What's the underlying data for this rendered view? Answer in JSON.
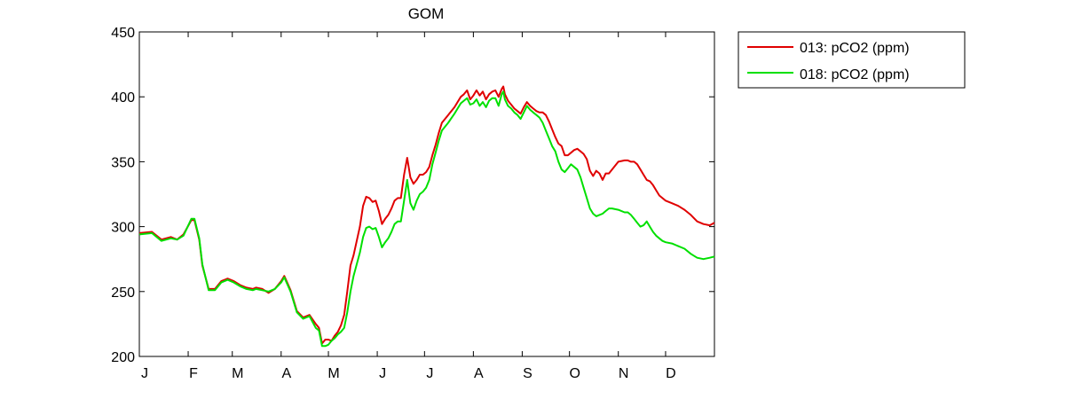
{
  "chart_data": {
    "type": "line",
    "title": "GOM",
    "xlabel": "",
    "ylabel": "",
    "xlim": [
      0,
      365
    ],
    "ylim": [
      200,
      450
    ],
    "yticks": [
      200,
      250,
      300,
      350,
      400,
      450
    ],
    "xticks": [
      {
        "label": "J",
        "day": 0
      },
      {
        "label": "F",
        "day": 31
      },
      {
        "label": "M",
        "day": 59
      },
      {
        "label": "A",
        "day": 90
      },
      {
        "label": "M",
        "day": 120
      },
      {
        "label": "J",
        "day": 151
      },
      {
        "label": "J",
        "day": 181
      },
      {
        "label": "A",
        "day": 212
      },
      {
        "label": "S",
        "day": 243
      },
      {
        "label": "O",
        "day": 273
      },
      {
        "label": "N",
        "day": 304
      },
      {
        "label": "D",
        "day": 334
      }
    ],
    "grid": false,
    "legend_position": "outside-top-right",
    "series": [
      {
        "name": "013: pCO2 (ppm)",
        "color": "#e00000",
        "x": [
          0,
          8,
          14,
          20,
          24,
          28,
          33,
          35,
          38,
          40,
          44,
          48,
          52,
          56,
          60,
          64,
          68,
          72,
          74,
          78,
          82,
          86,
          90,
          92,
          96,
          100,
          104,
          108,
          112,
          114,
          116,
          118,
          120,
          122,
          124,
          126,
          128,
          130,
          132,
          134,
          136,
          140,
          142,
          144,
          146,
          148,
          150,
          152,
          154,
          156,
          158,
          160,
          162,
          164,
          166,
          168,
          170,
          172,
          174,
          176,
          178,
          180,
          182,
          184,
          186,
          188,
          190,
          192,
          196,
          200,
          204,
          206,
          208,
          210,
          212,
          214,
          216,
          218,
          220,
          222,
          224,
          226,
          228,
          230,
          231,
          232,
          234,
          236,
          238,
          240,
          242,
          244,
          246,
          248,
          250,
          252,
          254,
          256,
          258,
          260,
          262,
          264,
          266,
          268,
          270,
          272,
          274,
          276,
          278,
          280,
          282,
          284,
          286,
          288,
          290,
          292,
          294,
          296,
          298,
          300,
          304,
          308,
          310,
          312,
          314,
          316,
          318,
          320,
          322,
          324,
          326,
          328,
          330,
          332,
          334,
          338,
          342,
          346,
          350,
          354,
          358,
          362,
          365
        ],
        "y": [
          295,
          296,
          290,
          292,
          290,
          294,
          305,
          305,
          290,
          270,
          252,
          252,
          258,
          260,
          258,
          255,
          253,
          252,
          253,
          252,
          249,
          252,
          258,
          262,
          251,
          235,
          230,
          232,
          225,
          222,
          210,
          213,
          213,
          212,
          216,
          219,
          224,
          232,
          250,
          270,
          278,
          300,
          316,
          323,
          322,
          319,
          320,
          312,
          302,
          306,
          309,
          314,
          320,
          322,
          322,
          340,
          353,
          338,
          333,
          336,
          340,
          340,
          342,
          346,
          355,
          363,
          372,
          380,
          386,
          392,
          400,
          402,
          405,
          398,
          401,
          405,
          401,
          404,
          398,
          402,
          404,
          405,
          400,
          406,
          408,
          402,
          397,
          394,
          391,
          389,
          387,
          392,
          396,
          393,
          391,
          389,
          388,
          388,
          386,
          381,
          375,
          369,
          364,
          362,
          355,
          355,
          357,
          359,
          360,
          358,
          356,
          352,
          343,
          339,
          343,
          341,
          336,
          341,
          341,
          344,
          350,
          351,
          351,
          350,
          350,
          348,
          344,
          340,
          336,
          335,
          332,
          328,
          324,
          322,
          320,
          318,
          316,
          313,
          309,
          304,
          302,
          301,
          303
        ]
      },
      {
        "name": "018: pCO2 (ppm)",
        "color": "#00e000",
        "x": [
          0,
          8,
          14,
          20,
          24,
          28,
          33,
          35,
          38,
          40,
          44,
          48,
          52,
          56,
          60,
          64,
          68,
          72,
          74,
          78,
          82,
          86,
          90,
          92,
          96,
          100,
          104,
          108,
          112,
          114,
          116,
          118,
          120,
          122,
          124,
          126,
          128,
          130,
          132,
          134,
          136,
          140,
          142,
          144,
          146,
          148,
          150,
          152,
          154,
          156,
          158,
          160,
          162,
          164,
          166,
          168,
          170,
          172,
          174,
          176,
          178,
          180,
          182,
          184,
          186,
          188,
          190,
          192,
          196,
          200,
          204,
          206,
          208,
          210,
          212,
          214,
          216,
          218,
          220,
          222,
          224,
          226,
          228,
          230,
          231,
          232,
          234,
          236,
          238,
          240,
          242,
          244,
          246,
          248,
          250,
          252,
          254,
          256,
          258,
          260,
          262,
          264,
          266,
          268,
          270,
          272,
          274,
          276,
          278,
          280,
          282,
          284,
          286,
          288,
          290,
          292,
          294,
          296,
          298,
          300,
          304,
          308,
          310,
          312,
          314,
          316,
          318,
          320,
          322,
          324,
          326,
          328,
          330,
          332,
          334,
          338,
          342,
          346,
          350,
          354,
          358,
          362,
          365
        ],
        "y": [
          294,
          295,
          289,
          291,
          290,
          293,
          306,
          306,
          291,
          271,
          251,
          251,
          257,
          259,
          257,
          254,
          252,
          251,
          252,
          251,
          250,
          252,
          257,
          261,
          250,
          234,
          229,
          231,
          222,
          220,
          208,
          208,
          209,
          212,
          214,
          217,
          219,
          222,
          234,
          250,
          262,
          280,
          292,
          299,
          300,
          298,
          299,
          292,
          284,
          288,
          291,
          296,
          302,
          304,
          304,
          320,
          336,
          318,
          313,
          320,
          325,
          327,
          330,
          336,
          348,
          357,
          366,
          374,
          380,
          387,
          395,
          397,
          399,
          394,
          395,
          398,
          393,
          396,
          392,
          397,
          399,
          399,
          393,
          402,
          404,
          398,
          393,
          391,
          388,
          386,
          383,
          388,
          393,
          390,
          388,
          386,
          384,
          380,
          374,
          368,
          362,
          358,
          350,
          344,
          342,
          345,
          348,
          346,
          344,
          338,
          330,
          322,
          314,
          310,
          308,
          309,
          310,
          312,
          314,
          314,
          313,
          311,
          311,
          309,
          306,
          303,
          300,
          301,
          304,
          300,
          296,
          293,
          291,
          289,
          288,
          287,
          285,
          283,
          279,
          276,
          275,
          276,
          277
        ]
      }
    ]
  }
}
